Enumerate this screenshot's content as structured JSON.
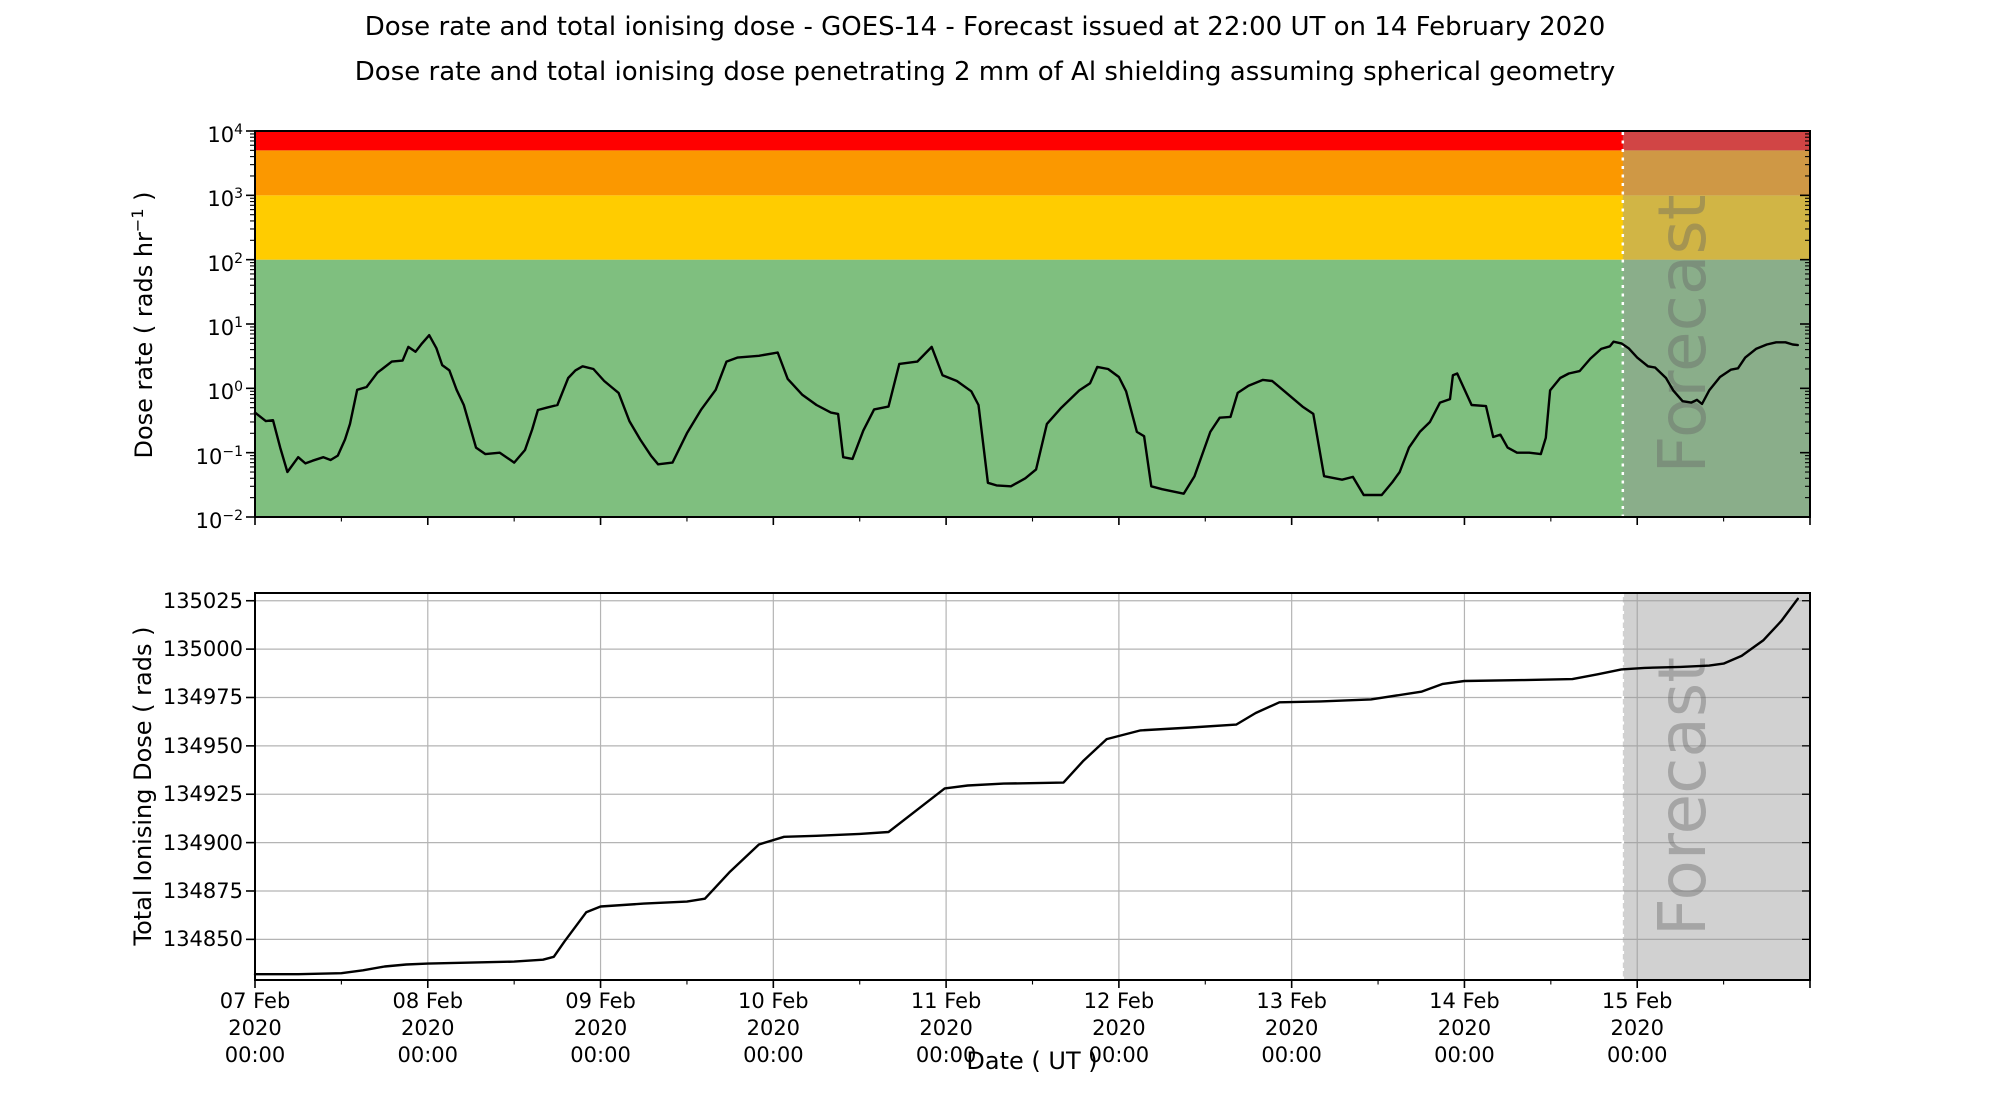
{
  "header": {
    "title": "Dose rate and total ionising dose - GOES-14 - Forecast issued at 22:00 UT on 14 February 2020",
    "subtitle": "Dose rate and total ionising dose penetrating 2 mm of Al shielding assuming spherical geometry"
  },
  "x_axis": {
    "label": "Date ( UT )",
    "tick_labels": [
      {
        "l1": "07 Feb",
        "l2": "2020",
        "l3": "00:00"
      },
      {
        "l1": "08 Feb",
        "l2": "2020",
        "l3": "00:00"
      },
      {
        "l1": "09 Feb",
        "l2": "2020",
        "l3": "00:00"
      },
      {
        "l1": "10 Feb",
        "l2": "2020",
        "l3": "00:00"
      },
      {
        "l1": "11 Feb",
        "l2": "2020",
        "l3": "00:00"
      },
      {
        "l1": "12 Feb",
        "l2": "2020",
        "l3": "00:00"
      },
      {
        "l1": "13 Feb",
        "l2": "2020",
        "l3": "00:00"
      },
      {
        "l1": "14 Feb",
        "l2": "2020",
        "l3": "00:00"
      },
      {
        "l1": "15 Feb",
        "l2": "2020",
        "l3": "00:00"
      }
    ],
    "major_tick_hours": 24,
    "minor_tick_hours": 12
  },
  "forecast": {
    "label": "Forecast",
    "start": "14 February 2020 22:00 UT",
    "start_hours": 190,
    "overlay_color": "#999999",
    "overlay_alpha": 0.45,
    "divider_color": "#ffffff",
    "watermark_color": "#646464",
    "watermark_alpha": 0.4
  },
  "chart_data": [
    {
      "type": "line",
      "panel": "dose-rate",
      "yscale": "log",
      "ylabel": {
        "prefix": "Dose rate ( rads hr",
        "sup": "−1",
        "suffix": " )"
      },
      "ylim": [
        0.01,
        10000
      ],
      "xlim_hours": [
        0,
        216
      ],
      "grid": false,
      "yticks": [
        {
          "base": "10",
          "exp": "4",
          "value": 10000
        },
        {
          "base": "10",
          "exp": "3",
          "value": 1000
        },
        {
          "base": "10",
          "exp": "2",
          "value": 100
        },
        {
          "base": "10",
          "exp": "1",
          "value": 10
        },
        {
          "base": "10",
          "exp": "0",
          "value": 1
        },
        {
          "base": "10",
          "exp": "−1",
          "value": 0.1
        },
        {
          "base": "10",
          "exp": "−2",
          "value": 0.01
        }
      ],
      "bands": [
        {
          "name": "green",
          "from": 0.01,
          "to": 100,
          "color": "#7fbf7f"
        },
        {
          "name": "gold",
          "from": 100,
          "to": 1000,
          "color": "#ffcc00"
        },
        {
          "name": "orange",
          "from": 1000,
          "to": 5000,
          "color": "#fb9800"
        },
        {
          "name": "red",
          "from": 5000,
          "to": 10000,
          "color": "#ff0000"
        }
      ],
      "line_color": "#000000",
      "series": [
        {
          "name": "Dose rate",
          "x_hours": [
            0,
            1.5,
            2.5,
            3.5,
            4.5,
            6,
            7,
            8,
            9.5,
            10.5,
            11.5,
            12.5,
            13.2,
            14.2,
            15.5,
            17,
            19,
            20.5,
            21.3,
            22.3,
            23.2,
            24.2,
            25.2,
            26,
            27,
            28,
            29,
            30.7,
            32,
            34,
            36,
            37.5,
            38.5,
            39.3,
            40.5,
            42,
            43.5,
            44.5,
            45.5,
            47,
            48.5,
            49.5,
            50.5,
            52,
            53.5,
            55,
            56,
            58,
            60,
            62,
            64,
            65.5,
            67,
            70,
            72,
            72.6,
            74,
            76,
            78,
            80,
            81,
            81.7,
            83,
            84.5,
            86,
            88,
            89.5,
            92,
            94,
            95.5,
            97.5,
            99.5,
            100.5,
            101.8,
            103,
            105,
            107,
            108.5,
            110,
            112,
            114.5,
            116,
            117,
            118.5,
            120,
            121,
            122.5,
            123.5,
            124.5,
            126,
            129,
            130.5,
            132.7,
            134,
            135.5,
            136.5,
            138,
            140,
            141.3,
            143,
            145.5,
            147,
            148.5,
            151,
            152.5,
            154,
            156.5,
            158,
            159,
            160.3,
            161.8,
            163.2,
            164.6,
            166,
            166.4,
            167,
            169,
            171,
            172,
            173,
            174,
            175.3,
            177,
            178.6,
            179.3,
            179.9,
            181.3,
            182.5,
            184,
            185.5,
            187,
            188.2,
            188.7,
            189.8,
            190.8,
            192,
            193.5,
            194.5,
            196,
            197,
            198.3,
            199.5,
            200.3,
            201,
            202,
            203.5,
            205,
            206,
            207,
            208.5,
            210,
            211.3,
            212.6,
            213.6,
            214.3
          ],
          "values": [
            0.42,
            0.31,
            0.32,
            0.12,
            0.05,
            0.085,
            0.068,
            0.075,
            0.085,
            0.077,
            0.09,
            0.16,
            0.28,
            0.95,
            1.05,
            1.75,
            2.6,
            2.7,
            4.4,
            3.7,
            5.0,
            6.7,
            4.2,
            2.3,
            1.9,
            0.95,
            0.55,
            0.12,
            0.095,
            0.1,
            0.07,
            0.11,
            0.23,
            0.46,
            0.5,
            0.55,
            1.45,
            1.9,
            2.2,
            2.0,
            1.3,
            1.05,
            0.85,
            0.31,
            0.16,
            0.09,
            0.066,
            0.07,
            0.2,
            0.47,
            0.95,
            2.6,
            3.0,
            3.2,
            3.5,
            3.6,
            1.4,
            0.8,
            0.55,
            0.42,
            0.4,
            0.085,
            0.08,
            0.22,
            0.47,
            0.52,
            2.4,
            2.6,
            4.4,
            1.6,
            1.3,
            0.9,
            0.55,
            0.034,
            0.031,
            0.03,
            0.04,
            0.055,
            0.28,
            0.5,
            0.93,
            1.2,
            2.15,
            2.0,
            1.5,
            0.9,
            0.21,
            0.18,
            0.03,
            0.027,
            0.023,
            0.043,
            0.21,
            0.35,
            0.36,
            0.85,
            1.1,
            1.35,
            1.3,
            0.9,
            0.52,
            0.4,
            0.043,
            0.038,
            0.042,
            0.022,
            0.022,
            0.035,
            0.05,
            0.12,
            0.21,
            0.3,
            0.6,
            0.68,
            1.6,
            1.7,
            0.55,
            0.53,
            0.175,
            0.19,
            0.12,
            0.1,
            0.1,
            0.095,
            0.17,
            0.93,
            1.45,
            1.7,
            1.85,
            2.9,
            4.1,
            4.5,
            5.3,
            5.0,
            4.2,
            3.0,
            2.2,
            2.1,
            1.45,
            0.93,
            0.63,
            0.6,
            0.66,
            0.57,
            0.93,
            1.5,
            1.95,
            2.05,
            3.0,
            4.1,
            4.8,
            5.2,
            5.2,
            4.8,
            4.7
          ]
        }
      ]
    },
    {
      "type": "line",
      "panel": "total-dose",
      "yscale": "linear",
      "ylabel": "Total Ionising Dose ( rads )",
      "ylim": [
        134829,
        135029
      ],
      "xlim_hours": [
        0,
        216
      ],
      "grid": true,
      "grid_color": "#b4b4b4",
      "yticks": [
        "135025",
        "135000",
        "134975",
        "134950",
        "134925",
        "134900",
        "134875",
        "134850"
      ],
      "ytick_values": [
        135025,
        135000,
        134975,
        134950,
        134925,
        134900,
        134875,
        134850
      ],
      "line_color": "#000000",
      "series": [
        {
          "name": "Total Ionising Dose",
          "x_hours": [
            0,
            6,
            12,
            15,
            18,
            21,
            24,
            30,
            36,
            40,
            41.5,
            43,
            46,
            48,
            54,
            60,
            62.5,
            66,
            70,
            73.5,
            78,
            84,
            88,
            92,
            95.8,
            99,
            104,
            112.3,
            115,
            118.3,
            123,
            130,
            136.3,
            139,
            142.3,
            148,
            155,
            162,
            165,
            168,
            176,
            183,
            186.5,
            189.8,
            193,
            198,
            202,
            204,
            206.5,
            209.5,
            212,
            214.3
          ],
          "values": [
            134832,
            134832,
            134832.5,
            134834,
            134836,
            134837,
            134837.5,
            134838,
            134838.5,
            134839.5,
            134841,
            134849,
            134864,
            134867,
            134868.5,
            134869.5,
            134871,
            134885,
            134899,
            134903,
            134903.5,
            134904.5,
            134905.5,
            134917,
            134928,
            134929.5,
            134930.5,
            134931,
            134942,
            134953.5,
            134958,
            134959.5,
            134961,
            134967,
            134972.5,
            134973,
            134974,
            134978,
            134982,
            134983.5,
            134984,
            134984.5,
            134987,
            134989.5,
            134990.3,
            134990.8,
            134991.5,
            134992.5,
            134996.5,
            135004.5,
            135014.5,
            135026
          ]
        }
      ]
    }
  ]
}
